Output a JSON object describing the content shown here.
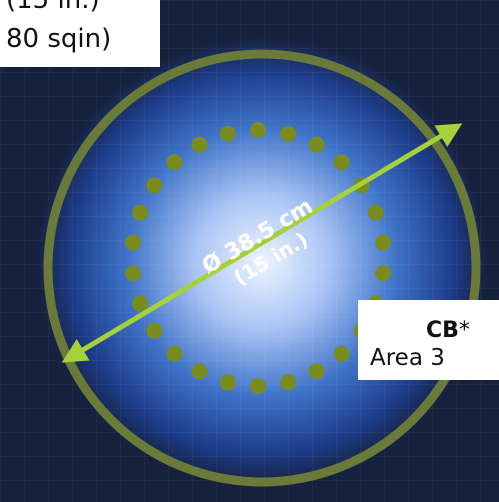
{
  "diagram": {
    "diameter_label": "Ø 38.5 cm",
    "diameter_sub_label": "(15 in.)",
    "colors": {
      "background": "#16213e",
      "glow_center": "#e8f0ff",
      "glow_mid": "#3f73c8",
      "outer_ring": "#6a7a38",
      "dots": "#7a8c1e",
      "arrow": "#a6d13a",
      "label_text": "#ffffff"
    }
  },
  "top_left_label": {
    "line1": "(15 in.)",
    "line2": "80 sqin)"
  },
  "right_label": {
    "title": "CB",
    "title_suffix": "*",
    "subtitle": "Area 3"
  }
}
